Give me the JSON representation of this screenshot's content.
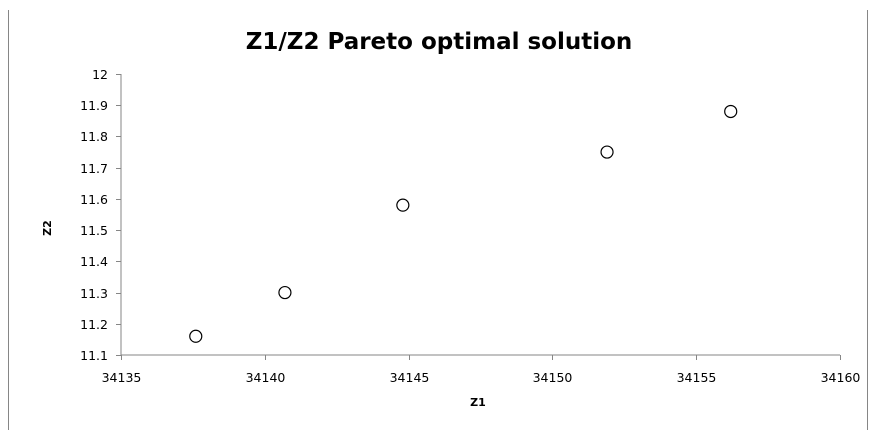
{
  "chart_data": {
    "type": "scatter",
    "title": "Z1/Z2  Pareto optimal solution",
    "xlabel": "Z1",
    "ylabel": "Z2",
    "xlim": [
      34135,
      34160
    ],
    "ylim": [
      11.1,
      12
    ],
    "x_ticks": [
      "34135",
      "34140",
      "34145",
      "34150",
      "34155",
      "34160"
    ],
    "y_ticks": [
      "11.1",
      "11.2",
      "11.3",
      "11.4",
      "11.5",
      "11.6",
      "11.7",
      "11.8",
      "11.9",
      "12"
    ],
    "grid": false,
    "legend": "none",
    "marker": "open-circle",
    "marker_color": "#000000",
    "series": [
      {
        "x": [
          34137.6,
          34140.7,
          34144.8,
          34151.9,
          34156.2
        ],
        "y": [
          11.16,
          11.3,
          11.58,
          11.75,
          11.88
        ]
      }
    ]
  }
}
